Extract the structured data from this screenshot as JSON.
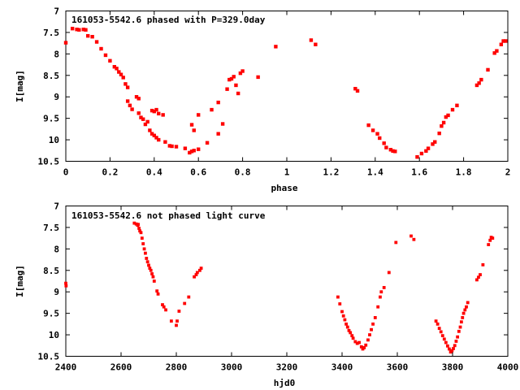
{
  "chart_data": [
    {
      "type": "scatter",
      "title": "161053-5542.6 phased with P=329.0day",
      "xlabel": "phase",
      "ylabel": "I[mag]",
      "xlim": [
        0,
        2
      ],
      "ylim": [
        10.5,
        7
      ],
      "y_inverted": true,
      "grid": false,
      "x_ticks": [
        "0",
        "0.2",
        "0.4",
        "0.6",
        "0.8",
        "1",
        "1.2",
        "1.4",
        "1.6",
        "1.8",
        "2"
      ],
      "y_ticks": [
        "7",
        "7.5",
        "8",
        "8.5",
        "9",
        "9.5",
        "10",
        "10.5"
      ],
      "marker_color": "#ff0000",
      "points": [
        [
          0.0,
          7.74
        ],
        [
          0.03,
          7.41
        ],
        [
          0.05,
          7.43
        ],
        [
          0.06,
          7.44
        ],
        [
          0.08,
          7.43
        ],
        [
          0.09,
          7.44
        ],
        [
          0.1,
          7.58
        ],
        [
          0.12,
          7.6
        ],
        [
          0.14,
          7.72
        ],
        [
          0.16,
          7.88
        ],
        [
          0.18,
          8.03
        ],
        [
          0.2,
          8.16
        ],
        [
          0.22,
          8.3
        ],
        [
          0.23,
          8.34
        ],
        [
          0.24,
          8.42
        ],
        [
          0.25,
          8.48
        ],
        [
          0.26,
          8.55
        ],
        [
          0.27,
          8.7
        ],
        [
          0.28,
          8.78
        ],
        [
          0.28,
          9.1
        ],
        [
          0.29,
          9.2
        ],
        [
          0.3,
          9.29
        ],
        [
          0.32,
          9.0
        ],
        [
          0.33,
          9.04
        ],
        [
          0.33,
          9.38
        ],
        [
          0.34,
          9.48
        ],
        [
          0.35,
          9.52
        ],
        [
          0.36,
          9.64
        ],
        [
          0.37,
          9.58
        ],
        [
          0.38,
          9.78
        ],
        [
          0.39,
          9.86
        ],
        [
          0.4,
          9.9
        ],
        [
          0.41,
          9.95
        ],
        [
          0.42,
          10.0
        ],
        [
          0.39,
          9.32
        ],
        [
          0.4,
          9.34
        ],
        [
          0.41,
          9.3
        ],
        [
          0.42,
          9.39
        ],
        [
          0.44,
          9.42
        ],
        [
          0.45,
          10.05
        ],
        [
          0.47,
          10.14
        ],
        [
          0.48,
          10.15
        ],
        [
          0.5,
          10.16
        ],
        [
          0.54,
          10.2
        ],
        [
          0.56,
          10.3
        ],
        [
          0.57,
          10.27
        ],
        [
          0.58,
          10.25
        ],
        [
          0.6,
          10.22
        ],
        [
          0.57,
          9.65
        ],
        [
          0.58,
          9.78
        ],
        [
          0.6,
          9.42
        ],
        [
          0.64,
          10.07
        ],
        [
          0.66,
          9.3
        ],
        [
          0.69,
          9.13
        ],
        [
          0.69,
          9.86
        ],
        [
          0.71,
          9.63
        ],
        [
          0.73,
          8.82
        ],
        [
          0.74,
          8.6
        ],
        [
          0.75,
          8.58
        ],
        [
          0.76,
          8.53
        ],
        [
          0.77,
          8.73
        ],
        [
          0.78,
          8.92
        ],
        [
          0.79,
          8.45
        ],
        [
          0.8,
          8.4
        ],
        [
          0.87,
          8.54
        ],
        [
          0.95,
          7.83
        ],
        [
          1.11,
          7.68
        ],
        [
          1.13,
          7.78
        ],
        [
          1.31,
          8.81
        ],
        [
          1.32,
          8.86
        ],
        [
          1.37,
          9.66
        ],
        [
          1.39,
          9.78
        ],
        [
          1.41,
          9.86
        ],
        [
          1.42,
          9.96
        ],
        [
          1.44,
          10.08
        ],
        [
          1.45,
          10.18
        ],
        [
          1.47,
          10.23
        ],
        [
          1.48,
          10.26
        ],
        [
          1.49,
          10.27
        ],
        [
          1.59,
          10.4
        ],
        [
          1.61,
          10.32
        ],
        [
          1.63,
          10.26
        ],
        [
          1.64,
          10.2
        ],
        [
          1.66,
          10.1
        ],
        [
          1.67,
          10.05
        ],
        [
          1.69,
          9.85
        ],
        [
          1.7,
          9.68
        ],
        [
          1.71,
          9.6
        ],
        [
          1.72,
          9.47
        ],
        [
          1.73,
          9.43
        ],
        [
          1.75,
          9.3
        ],
        [
          1.77,
          9.2
        ],
        [
          1.86,
          8.73
        ],
        [
          1.87,
          8.68
        ],
        [
          1.88,
          8.6
        ],
        [
          1.91,
          8.37
        ],
        [
          1.94,
          7.98
        ],
        [
          1.95,
          7.93
        ],
        [
          1.97,
          7.78
        ],
        [
          1.98,
          7.7
        ],
        [
          1.99,
          7.7
        ]
      ]
    },
    {
      "type": "scatter",
      "title": "161053-5542.6 not phased light curve",
      "xlabel": "hjd0",
      "ylabel": "I[mag]",
      "xlim": [
        2400,
        4000
      ],
      "ylim": [
        10.5,
        7
      ],
      "y_inverted": true,
      "grid": false,
      "x_ticks": [
        "2400",
        "2600",
        "2800",
        "3000",
        "3200",
        "3400",
        "3600",
        "3800",
        "4000"
      ],
      "y_ticks": [
        "7",
        "7.5",
        "8",
        "8.5",
        "9",
        "9.5",
        "10",
        "10.5"
      ],
      "marker_color": "#ff0000",
      "points": [
        [
          2400,
          8.8
        ],
        [
          2401,
          8.86
        ],
        [
          2648,
          7.4
        ],
        [
          2655,
          7.42
        ],
        [
          2660,
          7.45
        ],
        [
          2662,
          7.43
        ],
        [
          2665,
          7.52
        ],
        [
          2668,
          7.58
        ],
        [
          2672,
          7.62
        ],
        [
          2676,
          7.75
        ],
        [
          2680,
          7.88
        ],
        [
          2684,
          8.0
        ],
        [
          2688,
          8.1
        ],
        [
          2692,
          8.22
        ],
        [
          2696,
          8.3
        ],
        [
          2700,
          8.38
        ],
        [
          2704,
          8.45
        ],
        [
          2708,
          8.5
        ],
        [
          2712,
          8.58
        ],
        [
          2716,
          8.65
        ],
        [
          2720,
          8.75
        ],
        [
          2730,
          8.98
        ],
        [
          2734,
          9.05
        ],
        [
          2750,
          9.3
        ],
        [
          2755,
          9.35
        ],
        [
          2762,
          9.42
        ],
        [
          2782,
          9.68
        ],
        [
          2800,
          9.78
        ],
        [
          2803,
          9.68
        ],
        [
          2810,
          9.45
        ],
        [
          2830,
          9.27
        ],
        [
          2845,
          9.12
        ],
        [
          2865,
          8.65
        ],
        [
          2872,
          8.6
        ],
        [
          2876,
          8.55
        ],
        [
          2885,
          8.5
        ],
        [
          2890,
          8.45
        ],
        [
          3385,
          9.12
        ],
        [
          3392,
          9.28
        ],
        [
          3400,
          9.46
        ],
        [
          3405,
          9.56
        ],
        [
          3410,
          9.65
        ],
        [
          3415,
          9.75
        ],
        [
          3420,
          9.82
        ],
        [
          3425,
          9.9
        ],
        [
          3430,
          9.95
        ],
        [
          3436,
          10.02
        ],
        [
          3440,
          10.08
        ],
        [
          3448,
          10.16
        ],
        [
          3455,
          10.2
        ],
        [
          3462,
          10.18
        ],
        [
          3470,
          10.28
        ],
        [
          3475,
          10.33
        ],
        [
          3480,
          10.3
        ],
        [
          3486,
          10.24
        ],
        [
          3494,
          10.12
        ],
        [
          3500,
          10.0
        ],
        [
          3506,
          9.88
        ],
        [
          3512,
          9.75
        ],
        [
          3520,
          9.6
        ],
        [
          3530,
          9.35
        ],
        [
          3538,
          9.12
        ],
        [
          3542,
          9.0
        ],
        [
          3552,
          8.9
        ],
        [
          3570,
          8.55
        ],
        [
          3595,
          7.85
        ],
        [
          3650,
          7.7
        ],
        [
          3660,
          7.78
        ],
        [
          3740,
          9.68
        ],
        [
          3746,
          9.75
        ],
        [
          3752,
          9.85
        ],
        [
          3758,
          9.93
        ],
        [
          3764,
          10.02
        ],
        [
          3770,
          10.1
        ],
        [
          3776,
          10.18
        ],
        [
          3782,
          10.26
        ],
        [
          3788,
          10.33
        ],
        [
          3793,
          10.4
        ],
        [
          3798,
          10.37
        ],
        [
          3803,
          10.32
        ],
        [
          3808,
          10.25
        ],
        [
          3813,
          10.15
        ],
        [
          3818,
          10.05
        ],
        [
          3823,
          9.92
        ],
        [
          3828,
          9.82
        ],
        [
          3832,
          9.7
        ],
        [
          3836,
          9.6
        ],
        [
          3840,
          9.5
        ],
        [
          3845,
          9.42
        ],
        [
          3850,
          9.35
        ],
        [
          3855,
          9.25
        ],
        [
          3888,
          8.72
        ],
        [
          3894,
          8.66
        ],
        [
          3900,
          8.6
        ],
        [
          3910,
          8.37
        ],
        [
          3930,
          7.9
        ],
        [
          3936,
          7.8
        ],
        [
          3940,
          7.73
        ],
        [
          3945,
          7.75
        ]
      ]
    }
  ]
}
